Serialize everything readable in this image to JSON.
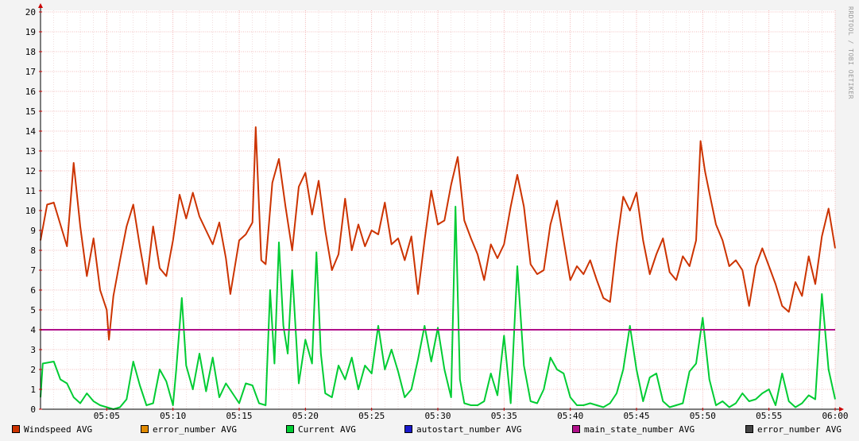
{
  "chart_data": {
    "type": "line",
    "title": "",
    "xlabel": "",
    "ylabel": "",
    "ylim": [
      0,
      20
    ],
    "y_ticks": [
      0,
      1,
      2,
      3,
      4,
      5,
      6,
      7,
      8,
      9,
      10,
      11,
      12,
      13,
      14,
      15,
      16,
      17,
      18,
      19,
      20
    ],
    "x_range": [
      "05:00",
      "06:00"
    ],
    "x_ticks": [
      "05:05",
      "05:10",
      "05:15",
      "05:20",
      "05:25",
      "05:30",
      "05:35",
      "05:40",
      "05:45",
      "05:50",
      "05:55",
      "06:00"
    ],
    "grid": true,
    "legend_position": "bottom",
    "series": [
      {
        "name": "Windspeed AVG",
        "color": "#cc3300",
        "points": [
          [
            "05:00:00",
            8.5
          ],
          [
            "05:00:30",
            10.3
          ],
          [
            "05:01:00",
            10.4
          ],
          [
            "05:01:30",
            9.3
          ],
          [
            "05:02:00",
            8.2
          ],
          [
            "05:02:30",
            12.4
          ],
          [
            "05:03:00",
            9.2
          ],
          [
            "05:03:30",
            6.7
          ],
          [
            "05:04:00",
            8.6
          ],
          [
            "05:04:30",
            6.0
          ],
          [
            "05:05:00",
            5.0
          ],
          [
            "05:05:10",
            3.5
          ],
          [
            "05:05:30",
            5.7
          ],
          [
            "05:06:00",
            7.5
          ],
          [
            "05:06:30",
            9.2
          ],
          [
            "05:07:00",
            10.3
          ],
          [
            "05:07:30",
            8.2
          ],
          [
            "05:08:00",
            6.3
          ],
          [
            "05:08:30",
            9.2
          ],
          [
            "05:09:00",
            7.1
          ],
          [
            "05:09:30",
            6.7
          ],
          [
            "05:10:00",
            8.5
          ],
          [
            "05:10:30",
            10.8
          ],
          [
            "05:11:00",
            9.6
          ],
          [
            "05:11:30",
            10.9
          ],
          [
            "05:12:00",
            9.7
          ],
          [
            "05:12:30",
            9.0
          ],
          [
            "05:13:00",
            8.3
          ],
          [
            "05:13:30",
            9.4
          ],
          [
            "05:14:00",
            7.6
          ],
          [
            "05:14:20",
            5.8
          ],
          [
            "05:15:00",
            8.5
          ],
          [
            "05:15:30",
            8.8
          ],
          [
            "05:16:00",
            9.4
          ],
          [
            "05:16:15",
            14.2
          ],
          [
            "05:16:40",
            7.5
          ],
          [
            "05:17:00",
            7.3
          ],
          [
            "05:17:30",
            11.4
          ],
          [
            "05:18:00",
            12.6
          ],
          [
            "05:18:30",
            10.2
          ],
          [
            "05:19:00",
            8.0
          ],
          [
            "05:19:30",
            11.2
          ],
          [
            "05:20:00",
            11.9
          ],
          [
            "05:20:30",
            9.8
          ],
          [
            "05:21:00",
            11.5
          ],
          [
            "05:21:30",
            9.0
          ],
          [
            "05:22:00",
            7.0
          ],
          [
            "05:22:30",
            7.8
          ],
          [
            "05:23:00",
            10.6
          ],
          [
            "05:23:30",
            8.0
          ],
          [
            "05:24:00",
            9.3
          ],
          [
            "05:24:30",
            8.2
          ],
          [
            "05:25:00",
            9.0
          ],
          [
            "05:25:30",
            8.8
          ],
          [
            "05:26:00",
            10.4
          ],
          [
            "05:26:30",
            8.3
          ],
          [
            "05:27:00",
            8.6
          ],
          [
            "05:27:30",
            7.5
          ],
          [
            "05:28:00",
            8.7
          ],
          [
            "05:28:30",
            5.8
          ],
          [
            "05:29:00",
            8.5
          ],
          [
            "05:29:30",
            11.0
          ],
          [
            "05:30:00",
            9.3
          ],
          [
            "05:30:30",
            9.5
          ],
          [
            "05:31:00",
            11.3
          ],
          [
            "05:31:30",
            12.7
          ],
          [
            "05:32:00",
            9.5
          ],
          [
            "05:32:30",
            8.6
          ],
          [
            "05:33:00",
            7.8
          ],
          [
            "05:33:30",
            6.5
          ],
          [
            "05:34:00",
            8.3
          ],
          [
            "05:34:30",
            7.6
          ],
          [
            "05:35:00",
            8.3
          ],
          [
            "05:35:30",
            10.2
          ],
          [
            "05:36:00",
            11.8
          ],
          [
            "05:36:30",
            10.2
          ],
          [
            "05:37:00",
            7.3
          ],
          [
            "05:37:30",
            6.8
          ],
          [
            "05:38:00",
            7.0
          ],
          [
            "05:38:30",
            9.3
          ],
          [
            "05:39:00",
            10.5
          ],
          [
            "05:39:30",
            8.5
          ],
          [
            "05:40:00",
            6.5
          ],
          [
            "05:40:30",
            7.2
          ],
          [
            "05:41:00",
            6.8
          ],
          [
            "05:41:30",
            7.5
          ],
          [
            "05:42:00",
            6.5
          ],
          [
            "05:42:30",
            5.6
          ],
          [
            "05:43:00",
            5.4
          ],
          [
            "05:43:30",
            8.3
          ],
          [
            "05:44:00",
            10.7
          ],
          [
            "05:44:30",
            10.0
          ],
          [
            "05:45:00",
            10.9
          ],
          [
            "05:45:30",
            8.5
          ],
          [
            "05:46:00",
            6.8
          ],
          [
            "05:46:30",
            7.8
          ],
          [
            "05:47:00",
            8.6
          ],
          [
            "05:47:30",
            6.9
          ],
          [
            "05:48:00",
            6.5
          ],
          [
            "05:48:30",
            7.7
          ],
          [
            "05:49:00",
            7.2
          ],
          [
            "05:49:30",
            8.5
          ],
          [
            "05:49:50",
            13.5
          ],
          [
            "05:50:10",
            12.0
          ],
          [
            "05:50:30",
            10.9
          ],
          [
            "05:51:00",
            9.3
          ],
          [
            "05:51:30",
            8.5
          ],
          [
            "05:52:00",
            7.2
          ],
          [
            "05:52:30",
            7.5
          ],
          [
            "05:53:00",
            7.0
          ],
          [
            "05:53:30",
            5.2
          ],
          [
            "05:54:00",
            7.2
          ],
          [
            "05:54:30",
            8.1
          ],
          [
            "05:55:00",
            7.2
          ],
          [
            "05:55:30",
            6.3
          ],
          [
            "05:56:00",
            5.2
          ],
          [
            "05:56:30",
            4.9
          ],
          [
            "05:57:00",
            6.4
          ],
          [
            "05:57:30",
            5.7
          ],
          [
            "05:58:00",
            7.7
          ],
          [
            "05:58:30",
            6.3
          ],
          [
            "05:59:00",
            8.7
          ],
          [
            "05:59:30",
            10.1
          ],
          [
            "06:00:00",
            8.1
          ]
        ]
      },
      {
        "name": "error_number AVG",
        "color": "#e08a00",
        "points": []
      },
      {
        "name": "Current AVG",
        "color": "#00cc33",
        "points": [
          [
            "05:00:00",
            0.6
          ],
          [
            "05:00:10",
            2.3
          ],
          [
            "05:01:00",
            2.4
          ],
          [
            "05:01:30",
            1.5
          ],
          [
            "05:02:00",
            1.3
          ],
          [
            "05:02:30",
            0.6
          ],
          [
            "05:03:00",
            0.3
          ],
          [
            "05:03:30",
            0.8
          ],
          [
            "05:04:00",
            0.4
          ],
          [
            "05:04:30",
            0.2
          ],
          [
            "05:05:00",
            0.1
          ],
          [
            "05:05:30",
            0.0
          ],
          [
            "05:06:00",
            0.1
          ],
          [
            "05:06:30",
            0.5
          ],
          [
            "05:07:00",
            2.4
          ],
          [
            "05:07:30",
            1.2
          ],
          [
            "05:08:00",
            0.2
          ],
          [
            "05:08:30",
            0.3
          ],
          [
            "05:09:00",
            2.0
          ],
          [
            "05:09:30",
            1.4
          ],
          [
            "05:10:00",
            0.2
          ],
          [
            "05:10:15",
            2.0
          ],
          [
            "05:10:40",
            5.6
          ],
          [
            "05:11:00",
            2.2
          ],
          [
            "05:11:30",
            1.0
          ],
          [
            "05:12:00",
            2.8
          ],
          [
            "05:12:30",
            0.9
          ],
          [
            "05:13:00",
            2.6
          ],
          [
            "05:13:30",
            0.6
          ],
          [
            "05:14:00",
            1.3
          ],
          [
            "05:14:30",
            0.8
          ],
          [
            "05:15:00",
            0.3
          ],
          [
            "05:15:30",
            1.3
          ],
          [
            "05:16:00",
            1.2
          ],
          [
            "05:16:30",
            0.3
          ],
          [
            "05:17:00",
            0.2
          ],
          [
            "05:17:20",
            6.0
          ],
          [
            "05:17:40",
            2.3
          ],
          [
            "05:18:00",
            8.4
          ],
          [
            "05:18:20",
            4.2
          ],
          [
            "05:18:40",
            2.8
          ],
          [
            "05:19:00",
            7.0
          ],
          [
            "05:19:30",
            1.3
          ],
          [
            "05:20:00",
            3.5
          ],
          [
            "05:20:30",
            2.3
          ],
          [
            "05:20:50",
            7.9
          ],
          [
            "05:21:10",
            2.8
          ],
          [
            "05:21:30",
            0.8
          ],
          [
            "05:22:00",
            0.6
          ],
          [
            "05:22:30",
            2.2
          ],
          [
            "05:23:00",
            1.5
          ],
          [
            "05:23:30",
            2.6
          ],
          [
            "05:24:00",
            1.0
          ],
          [
            "05:24:30",
            2.2
          ],
          [
            "05:25:00",
            1.8
          ],
          [
            "05:25:30",
            4.2
          ],
          [
            "05:26:00",
            2.0
          ],
          [
            "05:26:30",
            3.0
          ],
          [
            "05:27:00",
            1.9
          ],
          [
            "05:27:30",
            0.6
          ],
          [
            "05:28:00",
            1.0
          ],
          [
            "05:28:30",
            2.5
          ],
          [
            "05:29:00",
            4.2
          ],
          [
            "05:29:30",
            2.4
          ],
          [
            "05:30:00",
            4.1
          ],
          [
            "05:30:30",
            2.0
          ],
          [
            "05:31:00",
            0.6
          ],
          [
            "05:31:20",
            10.2
          ],
          [
            "05:31:40",
            1.5
          ],
          [
            "05:32:00",
            0.3
          ],
          [
            "05:32:30",
            0.2
          ],
          [
            "05:33:00",
            0.2
          ],
          [
            "05:33:30",
            0.4
          ],
          [
            "05:34:00",
            1.8
          ],
          [
            "05:34:30",
            0.7
          ],
          [
            "05:35:00",
            3.7
          ],
          [
            "05:35:30",
            0.3
          ],
          [
            "05:36:00",
            7.2
          ],
          [
            "05:36:30",
            2.2
          ],
          [
            "05:37:00",
            0.4
          ],
          [
            "05:37:30",
            0.3
          ],
          [
            "05:38:00",
            1.0
          ],
          [
            "05:38:30",
            2.6
          ],
          [
            "05:39:00",
            2.0
          ],
          [
            "05:39:30",
            1.8
          ],
          [
            "05:40:00",
            0.6
          ],
          [
            "05:40:30",
            0.2
          ],
          [
            "05:41:00",
            0.2
          ],
          [
            "05:41:30",
            0.3
          ],
          [
            "05:42:00",
            0.2
          ],
          [
            "05:42:30",
            0.1
          ],
          [
            "05:43:00",
            0.3
          ],
          [
            "05:43:30",
            0.8
          ],
          [
            "05:44:00",
            2.0
          ],
          [
            "05:44:30",
            4.2
          ],
          [
            "05:45:00",
            2.0
          ],
          [
            "05:45:30",
            0.4
          ],
          [
            "05:46:00",
            1.6
          ],
          [
            "05:46:30",
            1.8
          ],
          [
            "05:47:00",
            0.4
          ],
          [
            "05:47:30",
            0.1
          ],
          [
            "05:48:00",
            0.2
          ],
          [
            "05:48:30",
            0.3
          ],
          [
            "05:49:00",
            1.9
          ],
          [
            "05:49:30",
            2.3
          ],
          [
            "05:50:00",
            4.6
          ],
          [
            "05:50:30",
            1.5
          ],
          [
            "05:51:00",
            0.2
          ],
          [
            "05:51:30",
            0.4
          ],
          [
            "05:52:00",
            0.1
          ],
          [
            "05:52:30",
            0.3
          ],
          [
            "05:53:00",
            0.8
          ],
          [
            "05:53:30",
            0.4
          ],
          [
            "05:54:00",
            0.5
          ],
          [
            "05:54:30",
            0.8
          ],
          [
            "05:55:00",
            1.0
          ],
          [
            "05:55:30",
            0.2
          ],
          [
            "05:56:00",
            1.8
          ],
          [
            "05:56:30",
            0.4
          ],
          [
            "05:57:00",
            0.1
          ],
          [
            "05:57:30",
            0.3
          ],
          [
            "05:58:00",
            0.7
          ],
          [
            "05:58:30",
            0.5
          ],
          [
            "05:59:00",
            5.8
          ],
          [
            "05:59:30",
            2.0
          ],
          [
            "06:00:00",
            0.5
          ]
        ]
      },
      {
        "name": "autostart_number AVG",
        "color": "#1a1acc",
        "points": []
      },
      {
        "name": "main_state_number AVG",
        "color": "#b0108a",
        "points": [
          [
            "05:00:00",
            4
          ],
          [
            "06:00:00",
            4
          ]
        ]
      },
      {
        "name": "error_number AVG",
        "color": "#444444",
        "points": []
      }
    ]
  },
  "watermark": "RRDTOOL / TOBI OETIKER"
}
